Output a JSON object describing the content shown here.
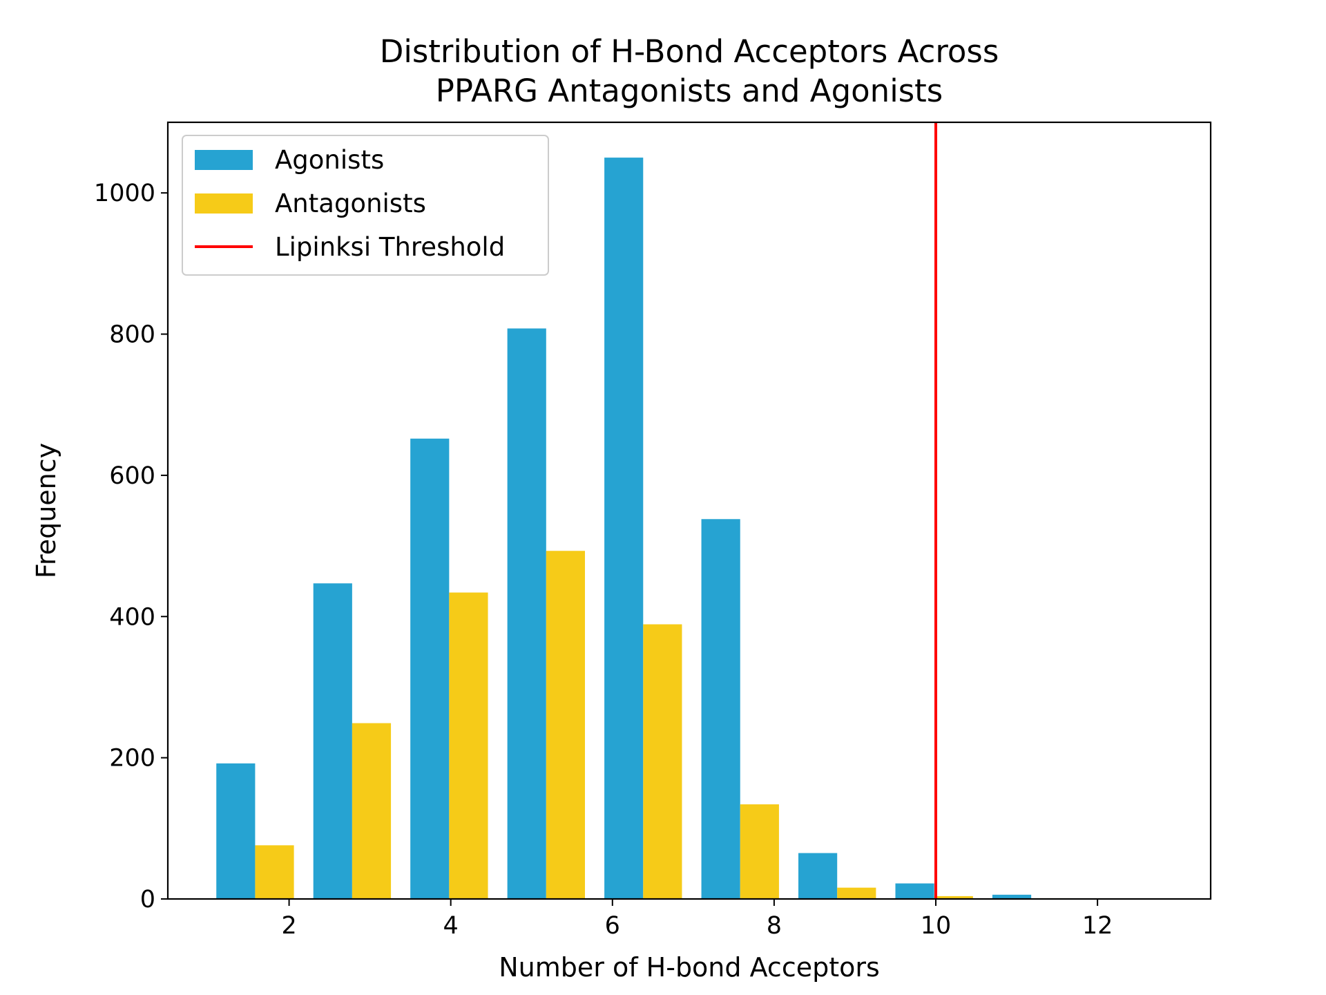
{
  "chart_data": {
    "type": "bar",
    "title": [
      "Distribution of H-Bond Acceptors Across",
      "PPARG Antagonists and Agonists"
    ],
    "xlabel": "Number of H-bond Acceptors",
    "ylabel": "Frequency",
    "xlim": [
      0.5,
      13.4
    ],
    "ylim": [
      0,
      1100
    ],
    "xticks": [
      2,
      4,
      6,
      8,
      10,
      12
    ],
    "yticks": [
      0,
      200,
      400,
      600,
      800,
      1000
    ],
    "grid": false,
    "legend_position": "top-left",
    "series": [
      {
        "name": "Agonists",
        "color": "#26a3d2",
        "bins": [
          {
            "x0": 1.1,
            "x1": 1.58,
            "value": 192
          },
          {
            "x0": 2.3,
            "x1": 2.78,
            "value": 447
          },
          {
            "x0": 3.5,
            "x1": 3.98,
            "value": 652
          },
          {
            "x0": 4.7,
            "x1": 5.18,
            "value": 808
          },
          {
            "x0": 5.9,
            "x1": 6.38,
            "value": 1050
          },
          {
            "x0": 7.1,
            "x1": 7.58,
            "value": 538
          },
          {
            "x0": 8.3,
            "x1": 8.78,
            "value": 65
          },
          {
            "x0": 9.5,
            "x1": 9.98,
            "value": 22
          },
          {
            "x0": 10.7,
            "x1": 11.18,
            "value": 6
          }
        ]
      },
      {
        "name": "Antagonists",
        "color": "#f6cb18",
        "bins": [
          {
            "x0": 1.58,
            "x1": 2.06,
            "value": 76
          },
          {
            "x0": 2.78,
            "x1": 3.26,
            "value": 249
          },
          {
            "x0": 3.98,
            "x1": 4.46,
            "value": 434
          },
          {
            "x0": 5.18,
            "x1": 5.66,
            "value": 493
          },
          {
            "x0": 6.38,
            "x1": 6.86,
            "value": 389
          },
          {
            "x0": 7.58,
            "x1": 8.06,
            "value": 134
          },
          {
            "x0": 8.78,
            "x1": 9.26,
            "value": 16
          },
          {
            "x0": 9.98,
            "x1": 10.46,
            "value": 4
          },
          {
            "x0": 11.18,
            "x1": 11.66,
            "value": 1
          }
        ]
      }
    ],
    "reference_line": {
      "name": "Lipinksi Threshold",
      "x": 10,
      "color": "#ff0000"
    }
  }
}
